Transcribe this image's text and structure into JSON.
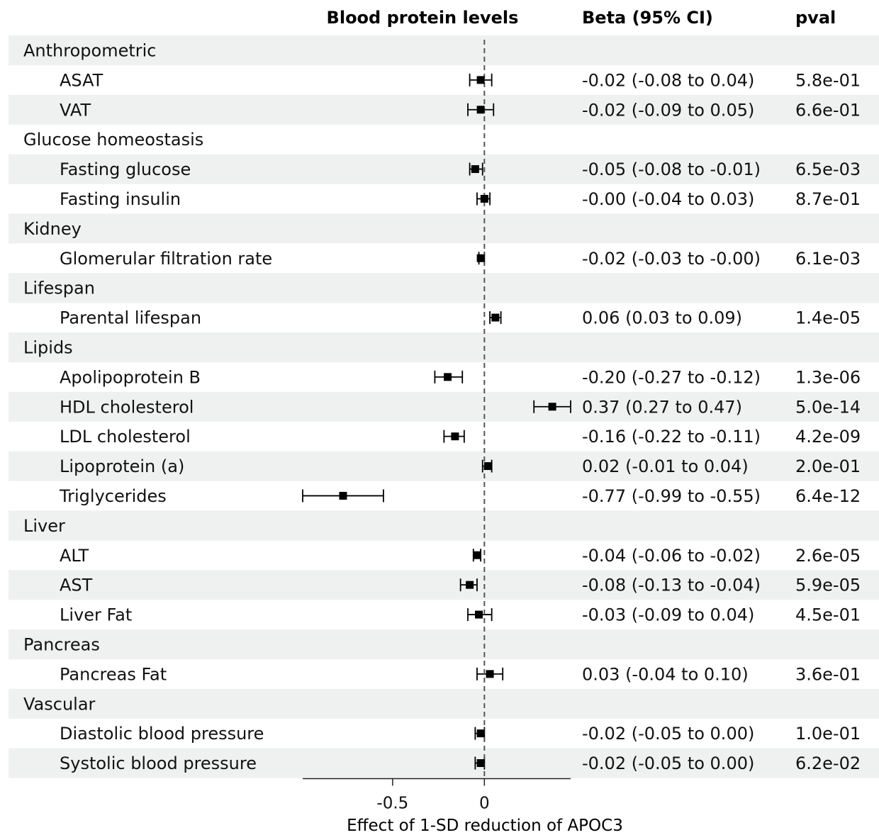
{
  "chart_data": {
    "type": "forest",
    "title": "",
    "headers": {
      "plot": "Blood protein levels",
      "beta": "Beta (95% CI)",
      "pval": "pval"
    },
    "xlabel": "Effect of 1-SD reduction of APOC3",
    "xlim": [
      -0.99,
      0.47
    ],
    "xticks": [
      {
        "value": -0.5,
        "label": "-0.5"
      },
      {
        "value": 0,
        "label": "0"
      }
    ],
    "reference_line": 0,
    "rows": [
      {
        "kind": "group",
        "label": "Anthropometric"
      },
      {
        "kind": "item",
        "label": "ASAT",
        "beta": -0.02,
        "lo": -0.08,
        "hi": 0.04,
        "ci_text": "-0.02 (-0.08 to 0.04)",
        "pval": "5.8e-01"
      },
      {
        "kind": "item",
        "label": "VAT",
        "beta": -0.02,
        "lo": -0.09,
        "hi": 0.05,
        "ci_text": "-0.02 (-0.09 to 0.05)",
        "pval": "6.6e-01"
      },
      {
        "kind": "group",
        "label": "Glucose homeostasis"
      },
      {
        "kind": "item",
        "label": "Fasting glucose",
        "beta": -0.05,
        "lo": -0.08,
        "hi": -0.01,
        "ci_text": "-0.05 (-0.08 to -0.01)",
        "pval": "6.5e-03"
      },
      {
        "kind": "item",
        "label": "Fasting insulin",
        "beta": -0.0,
        "lo": -0.04,
        "hi": 0.03,
        "ci_text": "-0.00 (-0.04 to 0.03)",
        "pval": "8.7e-01"
      },
      {
        "kind": "group",
        "label": "Kidney"
      },
      {
        "kind": "item",
        "label": "Glomerular filtration rate",
        "beta": -0.02,
        "lo": -0.03,
        "hi": -0.0,
        "ci_text": "-0.02 (-0.03 to -0.00)",
        "pval": "6.1e-03"
      },
      {
        "kind": "group",
        "label": "Lifespan"
      },
      {
        "kind": "item",
        "label": "Parental lifespan",
        "beta": 0.06,
        "lo": 0.03,
        "hi": 0.09,
        "ci_text": "0.06 (0.03 to 0.09)",
        "pval": "1.4e-05"
      },
      {
        "kind": "group",
        "label": "Lipids"
      },
      {
        "kind": "item",
        "label": "Apolipoprotein B",
        "beta": -0.2,
        "lo": -0.27,
        "hi": -0.12,
        "ci_text": "-0.20 (-0.27 to -0.12)",
        "pval": "1.3e-06"
      },
      {
        "kind": "item",
        "label": "HDL cholesterol",
        "beta": 0.37,
        "lo": 0.27,
        "hi": 0.47,
        "ci_text": "0.37 (0.27 to 0.47)",
        "pval": "5.0e-14"
      },
      {
        "kind": "item",
        "label": "LDL cholesterol",
        "beta": -0.16,
        "lo": -0.22,
        "hi": -0.11,
        "ci_text": "-0.16 (-0.22 to -0.11)",
        "pval": "4.2e-09"
      },
      {
        "kind": "item",
        "label": "Lipoprotein (a)",
        "beta": 0.02,
        "lo": -0.01,
        "hi": 0.04,
        "ci_text": "0.02 (-0.01 to 0.04)",
        "pval": "2.0e-01"
      },
      {
        "kind": "item",
        "label": "Triglycerides",
        "beta": -0.77,
        "lo": -0.99,
        "hi": -0.55,
        "ci_text": "-0.77 (-0.99 to -0.55)",
        "pval": "6.4e-12"
      },
      {
        "kind": "group",
        "label": "Liver"
      },
      {
        "kind": "item",
        "label": "ALT",
        "beta": -0.04,
        "lo": -0.06,
        "hi": -0.02,
        "ci_text": "-0.04 (-0.06 to -0.02)",
        "pval": "2.6e-05"
      },
      {
        "kind": "item",
        "label": "AST",
        "beta": -0.08,
        "lo": -0.13,
        "hi": -0.04,
        "ci_text": "-0.08 (-0.13 to -0.04)",
        "pval": "5.9e-05"
      },
      {
        "kind": "item",
        "label": "Liver Fat",
        "beta": -0.03,
        "lo": -0.09,
        "hi": 0.04,
        "ci_text": "-0.03 (-0.09 to 0.04)",
        "pval": "4.5e-01"
      },
      {
        "kind": "group",
        "label": "Pancreas"
      },
      {
        "kind": "item",
        "label": "Pancreas Fat",
        "beta": 0.03,
        "lo": -0.04,
        "hi": 0.1,
        "ci_text": "0.03 (-0.04 to 0.10)",
        "pval": "3.6e-01"
      },
      {
        "kind": "group",
        "label": "Vascular"
      },
      {
        "kind": "item",
        "label": "Diastolic blood pressure",
        "beta": -0.02,
        "lo": -0.05,
        "hi": 0.0,
        "ci_text": "-0.02 (-0.05 to 0.00)",
        "pval": "1.0e-01"
      },
      {
        "kind": "item",
        "label": "Systolic blood pressure",
        "beta": -0.02,
        "lo": -0.05,
        "hi": 0.0,
        "ci_text": "-0.02 (-0.05 to 0.00)",
        "pval": "6.2e-02"
      }
    ],
    "colors": {
      "stripe": "#eff1f0",
      "marker": "#000000",
      "reference_line": "#555555"
    }
  }
}
